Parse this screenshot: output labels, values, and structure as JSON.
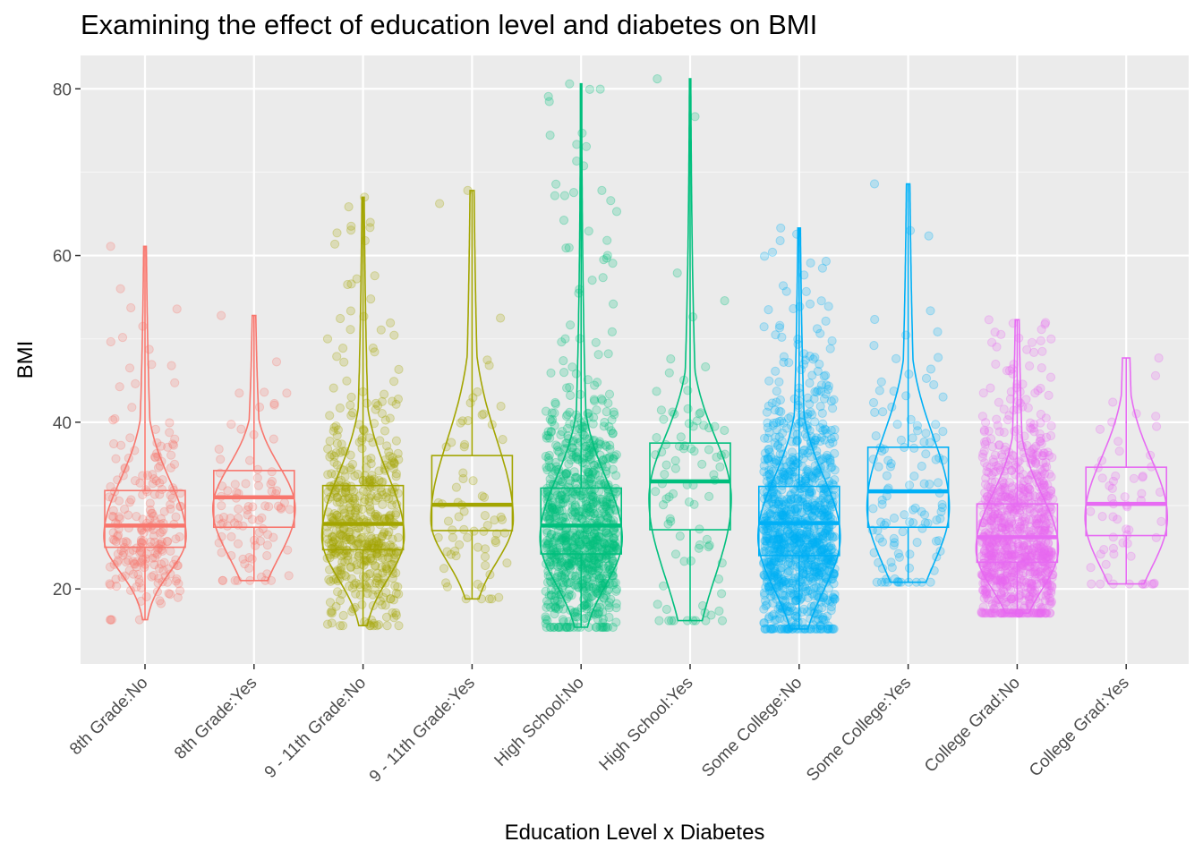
{
  "chart_data": {
    "type": "violin+boxplot+jitter",
    "title": "Examining the effect of education level and diabetes on BMI",
    "xlabel": "Education Level x Diabetes",
    "ylabel": "BMI",
    "ylim": [
      11,
      84
    ],
    "yticks": [
      20,
      40,
      60,
      80
    ],
    "grid": true,
    "legend": "none",
    "categories": [
      "8th Grade:No",
      "8th Grade:Yes",
      "9 - 11th Grade:No",
      "9 - 11th Grade:Yes",
      "High School:No",
      "High School:Yes",
      "Some College:No",
      "Some College:Yes",
      "College Grad:No",
      "College Grad:Yes"
    ],
    "colors": [
      "#F8766D",
      "#F8766D",
      "#A3A500",
      "#A3A500",
      "#00BF7D",
      "#00BF7D",
      "#00B0F6",
      "#00B0F6",
      "#E76BF3",
      "#E76BF3"
    ],
    "series": [
      {
        "category": "8th Grade:No",
        "min": 16.3,
        "q1": 25.0,
        "median": 27.6,
        "q3": 31.8,
        "max": 61.1,
        "n_points": 230
      },
      {
        "category": "8th Grade:Yes",
        "min": 21.0,
        "q1": 27.4,
        "median": 31.0,
        "q3": 34.2,
        "max": 52.8,
        "n_points": 90
      },
      {
        "category": "9 - 11th Grade:No",
        "min": 15.6,
        "q1": 24.7,
        "median": 27.8,
        "q3": 32.4,
        "max": 67.0,
        "n_points": 520
      },
      {
        "category": "9 - 11th Grade:Yes",
        "min": 18.8,
        "q1": 27.0,
        "median": 30.1,
        "q3": 36.0,
        "max": 67.8,
        "n_points": 70
      },
      {
        "category": "High School:No",
        "min": 15.4,
        "q1": 24.2,
        "median": 27.6,
        "q3": 32.1,
        "max": 80.6,
        "n_points": 950
      },
      {
        "category": "High School:Yes",
        "min": 16.2,
        "q1": 27.1,
        "median": 32.9,
        "q3": 37.5,
        "max": 81.2,
        "n_points": 90
      },
      {
        "category": "Some College:No",
        "min": 15.2,
        "q1": 24.0,
        "median": 27.9,
        "q3": 32.3,
        "max": 63.3,
        "n_points": 1100
      },
      {
        "category": "Some College:Yes",
        "min": 20.8,
        "q1": 27.4,
        "median": 31.7,
        "q3": 37.0,
        "max": 68.6,
        "n_points": 120
      },
      {
        "category": "College Grad:No",
        "min": 17.1,
        "q1": 23.2,
        "median": 26.2,
        "q3": 30.2,
        "max": 52.3,
        "n_points": 950
      },
      {
        "category": "College Grad:Yes",
        "min": 20.6,
        "q1": 26.4,
        "median": 30.2,
        "q3": 34.6,
        "max": 47.7,
        "n_points": 60
      }
    ]
  }
}
